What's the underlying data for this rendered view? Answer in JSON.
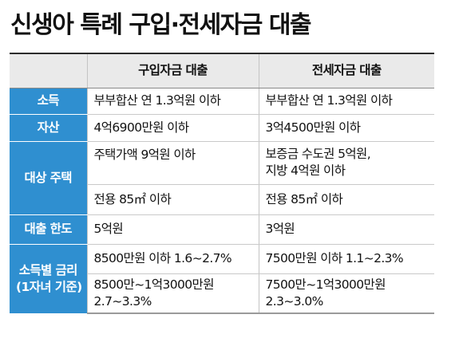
{
  "title": "신생아 특례 구입·전세자금 대출",
  "table": {
    "headers": [
      "",
      "구입자금 대출",
      "전세자금 대출"
    ],
    "rows": {
      "income": {
        "label": "소득",
        "purchase": "부부합산 연 1.3억원 이하",
        "jeonse": "부부합산 연 1.3억원 이하"
      },
      "assets": {
        "label": "자산",
        "purchase": "4억6900만원 이하",
        "jeonse": "3억4500만원 이하"
      },
      "housing": {
        "label": "대상 주택",
        "purchase_1": "주택가액 9억원 이하",
        "jeonse_1_line1": "보증금 수도권 5억원,",
        "jeonse_1_line2": "지방 4억원 이하",
        "purchase_2": "전용 85㎡ 이하",
        "jeonse_2": "전용 85㎡ 이하"
      },
      "limit": {
        "label": "대출 한도",
        "purchase": "5억원",
        "jeonse": "3억원"
      },
      "rate": {
        "label_line1": "소득별 금리",
        "label_line2": "(1자녀 기준)",
        "purchase_1": "8500만원 이하 1.6~2.7%",
        "jeonse_1": "7500만원 이하 1.1~2.3%",
        "purchase_2_line1": "8500만~1억3000만원",
        "purchase_2_line2": "2.7~3.3%",
        "jeonse_2_line1": "7500만~1억3000만원",
        "jeonse_2_line2": "2.3~3.0%"
      }
    }
  },
  "colors": {
    "label_bg": "#2f8fd0",
    "header_bg": "#eaeaea",
    "text": "#111111"
  }
}
